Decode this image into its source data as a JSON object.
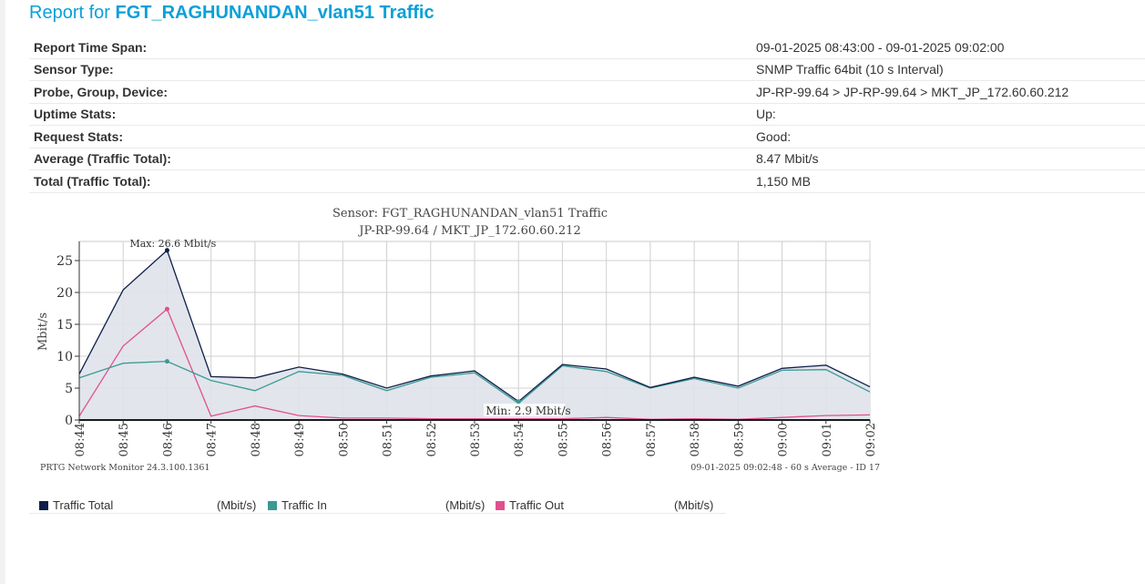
{
  "report": {
    "title_prefix": "Report for",
    "title_name": "FGT_RAGHUNANDAN_vlan51 Traffic"
  },
  "info": [
    {
      "label": "Report Time Span:",
      "value": "09-01-2025 08:43:00 - 09-01-2025 09:02:00"
    },
    {
      "label": "Sensor Type:",
      "value": "SNMP Traffic 64bit (10 s Interval)"
    },
    {
      "label": "Probe, Group, Device:",
      "value": "JP-RP-99.64 > JP-RP-99.64 > MKT_JP_172.60.60.212"
    },
    {
      "label": "Uptime Stats:",
      "value": "Up:",
      "value2": ""
    },
    {
      "label": "Request Stats:",
      "value": "Good:",
      "value2": ""
    },
    {
      "label": "Average (Traffic Total):",
      "value": "8.47 Mbit/s"
    },
    {
      "label": "Total (Traffic Total):",
      "value": "1,150 MB"
    }
  ],
  "chart_data": {
    "type": "line",
    "title": "Sensor: FGT_RAGHUNANDAN_vlan51 Traffic",
    "subtitle": "JP-RP-99.64 / MKT_JP_172.60.60.212",
    "ylabel": "Mbit/s",
    "ylim": [
      0,
      28
    ],
    "yticks": [
      0,
      5,
      10,
      15,
      20,
      25
    ],
    "categories": [
      "08:44",
      "08:45",
      "08:46",
      "08:47",
      "08:48",
      "08:49",
      "08:50",
      "08:51",
      "08:52",
      "08:53",
      "08:54",
      "08:55",
      "08:56",
      "08:57",
      "08:58",
      "08:59",
      "09:00",
      "09:01",
      "09:02"
    ],
    "series": [
      {
        "name": "Traffic Total",
        "color": "#0e1f4a",
        "fill": "#dfe2ea",
        "values": [
          7.2,
          20.4,
          26.6,
          6.8,
          6.6,
          8.3,
          7.2,
          5.0,
          6.9,
          7.7,
          2.9,
          8.7,
          8.0,
          5.1,
          6.7,
          5.3,
          8.1,
          8.6,
          5.2
        ]
      },
      {
        "name": "Traffic In",
        "color": "#3a9a94",
        "values": [
          6.6,
          8.9,
          9.2,
          6.2,
          4.6,
          7.6,
          7.0,
          4.6,
          6.7,
          7.4,
          2.6,
          8.5,
          7.6,
          5.0,
          6.5,
          5.0,
          7.8,
          7.9,
          4.4
        ]
      },
      {
        "name": "Traffic Out",
        "color": "#e0508c",
        "values": [
          0.6,
          11.6,
          17.4,
          0.6,
          2.2,
          0.7,
          0.3,
          0.3,
          0.2,
          0.2,
          0.2,
          0.2,
          0.4,
          0.1,
          0.2,
          0.1,
          0.4,
          0.7,
          0.8
        ]
      }
    ],
    "annotations": [
      {
        "text": "Max: 26.6 Mbit/s",
        "at": "08:46"
      },
      {
        "text": "Min: 2.9 Mbit/s",
        "at": "08:54"
      }
    ],
    "grid": true,
    "footer_left": "PRTG Network Monitor 24.3.100.1361",
    "footer_right": "09-01-2025 09:02:48 - 60 s Average - ID 17"
  },
  "legend": [
    {
      "label": "Traffic Total",
      "unit": "(Mbit/s)",
      "color": "#0e1f4a"
    },
    {
      "label": "Traffic In",
      "unit": "(Mbit/s)",
      "color": "#3a9a94"
    },
    {
      "label": "Traffic Out",
      "unit": "(Mbit/s)",
      "color": "#e0508c"
    }
  ]
}
